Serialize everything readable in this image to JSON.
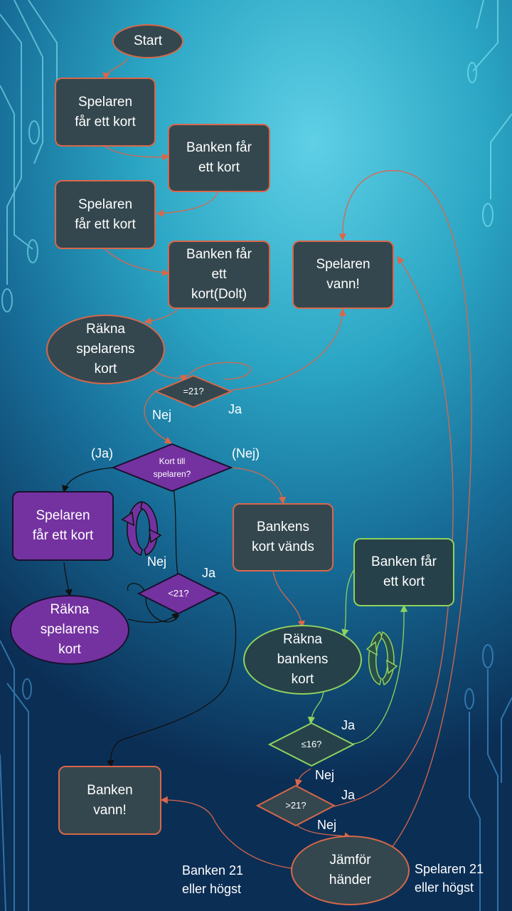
{
  "nodes": {
    "start": "Start",
    "player_card_1": "Spelaren\nfår ett kort",
    "bank_card_1": "Banken får\nett kort",
    "player_card_2": "Spelaren\nfår ett kort",
    "bank_card_hidden": "Banken får\nett\nkort(Dolt)",
    "count_player_1": "Räkna\nspelarens\nkort",
    "player_won": "Spelaren\nvann!",
    "player_card_loop": "Spelaren\nfår ett kort",
    "count_player_2": "Räkna\nspelarens\nkort",
    "bank_card_turned": "Bankens\nkort vänds",
    "bank_card_loop": "Banken får\nett kort",
    "count_bank": "Räkna\nbankens\nkort",
    "bank_won": "Banken\nvann!",
    "compare_hands": "Jämför\nhänder"
  },
  "decisions": {
    "eq21": "=21?",
    "card_to_player": "Kort till\nspelaren?",
    "lt21": "<21?",
    "le16": "≤16?",
    "gt21": ">21?"
  },
  "labels": {
    "nej_eq21": "Nej",
    "ja_eq21": "Ja",
    "ja_paren": "(Ja)",
    "nej_paren": "(Nej)",
    "nej_lt21": "Nej",
    "ja_lt21": "Ja",
    "ja_le16": "Ja",
    "nej_le16": "Nej",
    "ja_gt21": "Ja",
    "nej_gt21": "Nej",
    "bank_21_or_highest": "Banken 21\neller högst",
    "player_21_or_highest": "Spelaren 21\neller högst"
  },
  "colors": {
    "node_fill": "#34474e",
    "node_border": "#d8674a",
    "purple": "#7432a0",
    "green_border": "#8fd25e",
    "orange_connector": "#d8674a",
    "green_connector": "#8fd25e",
    "black_connector": "#111111"
  }
}
